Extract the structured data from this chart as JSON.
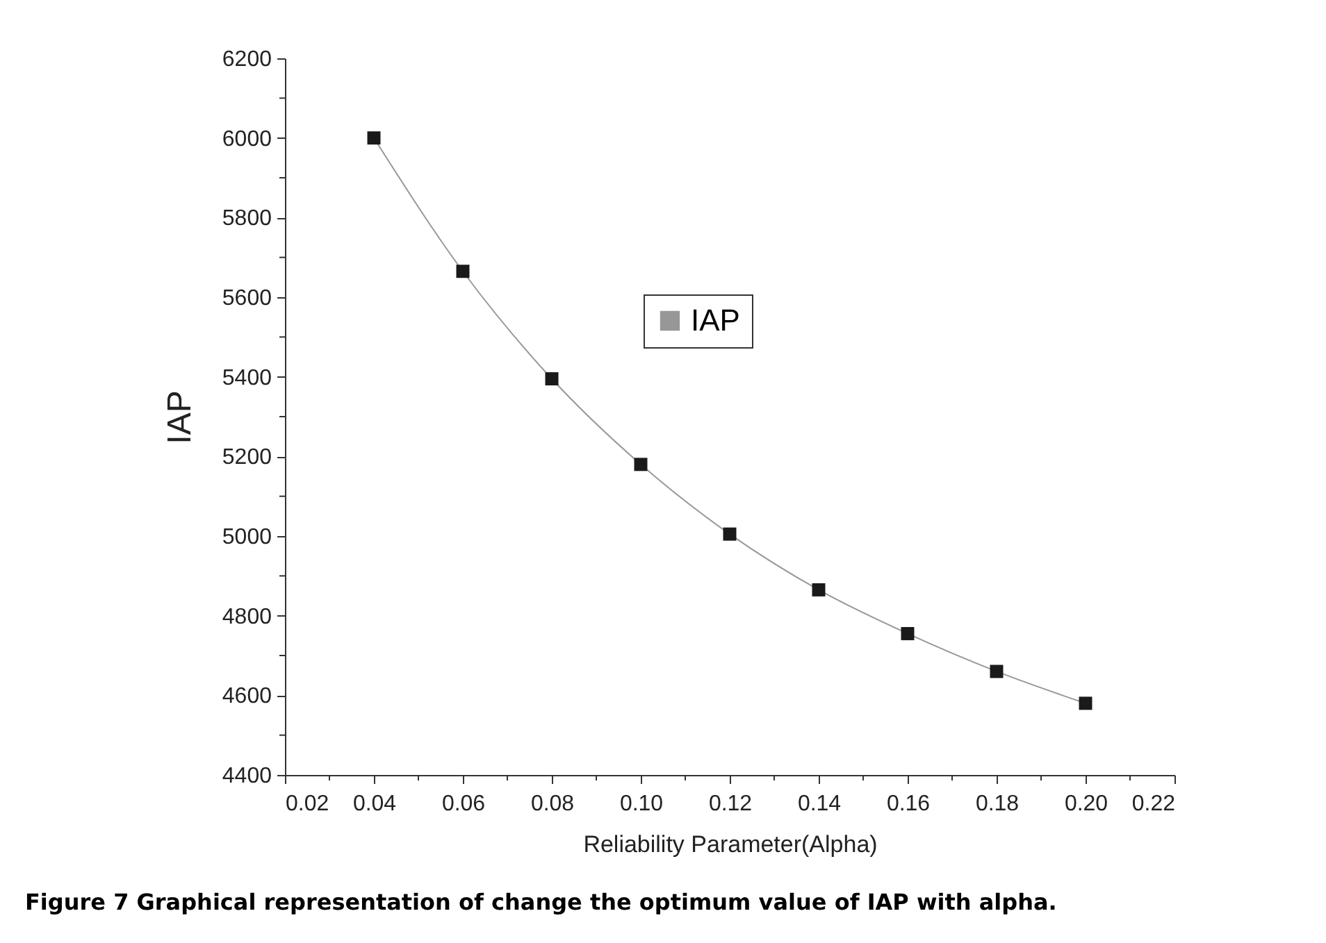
{
  "chart_data": {
    "type": "line",
    "xlabel": "Reliability Parameter(Alpha)",
    "ylabel": "IAP",
    "annotations": [
      "Figure 7 Graphical representation of change the optimum value of IAP with alpha."
    ],
    "x": [
      0.04,
      0.06,
      0.08,
      0.1,
      0.12,
      0.14,
      0.16,
      0.18,
      0.2
    ],
    "series": [
      {
        "name": "IAP",
        "color": "#1a1a1a",
        "values": [
          6000,
          5665,
          5395,
          5180,
          5005,
          4865,
          4755,
          4660,
          4580
        ]
      }
    ],
    "xlim": [
      0.02,
      0.22
    ],
    "xticks": [
      {
        "value": 0.02,
        "label": "0.02"
      },
      {
        "value": 0.03,
        "label": null
      },
      {
        "value": 0.04,
        "label": "0.04"
      },
      {
        "value": 0.05,
        "label": null
      },
      {
        "value": 0.06,
        "label": "0.06"
      },
      {
        "value": 0.07,
        "label": null
      },
      {
        "value": 0.08,
        "label": "0.08"
      },
      {
        "value": 0.09,
        "label": null
      },
      {
        "value": 0.1,
        "label": "0.10"
      },
      {
        "value": 0.11,
        "label": null
      },
      {
        "value": 0.12,
        "label": "0.12"
      },
      {
        "value": 0.13,
        "label": null
      },
      {
        "value": 0.14,
        "label": "0.14"
      },
      {
        "value": 0.15,
        "label": null
      },
      {
        "value": 0.16,
        "label": "0.16"
      },
      {
        "value": 0.17,
        "label": null
      },
      {
        "value": 0.18,
        "label": "0.18"
      },
      {
        "value": 0.19,
        "label": null
      },
      {
        "value": 0.2,
        "label": "0.20"
      },
      {
        "value": 0.21,
        "label": null
      },
      {
        "value": 0.22,
        "label": "0.22"
      }
    ],
    "ylim": [
      4400,
      6200
    ],
    "yticks": [
      4400,
      {
        "value": 4500,
        "label": null
      },
      4600,
      {
        "value": 4700,
        "label": null
      },
      4800,
      {
        "value": 4900,
        "label": null
      },
      5000,
      {
        "value": 5100,
        "label": null
      },
      5200,
      {
        "value": 5300,
        "label": null
      },
      5400,
      {
        "value": 5500,
        "label": null
      },
      5600,
      {
        "value": 5700,
        "label": null
      },
      5800,
      {
        "value": 5900,
        "label": null
      },
      6000,
      {
        "value": 6100,
        "label": null
      },
      6200
    ],
    "marker": "square",
    "line_style": "solid",
    "legend": "top",
    "grid": false
  }
}
